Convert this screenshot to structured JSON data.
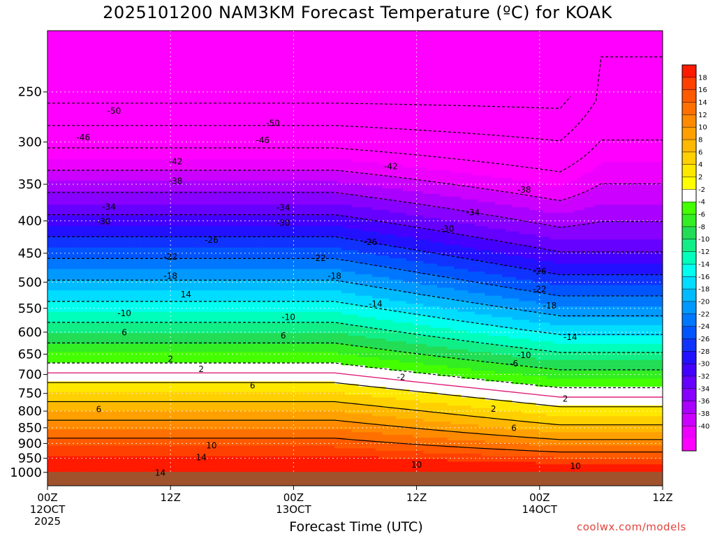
{
  "chart_data": {
    "type": "heatmap",
    "title": "2025101200 NAM3KM Forecast Temperature (ºC) for KOAK",
    "xlabel": "Forecast Time (UTC)",
    "ylabel": "",
    "x_ticks": [
      {
        "hours": 0,
        "lines": [
          "00Z",
          "12OCT",
          "2025"
        ]
      },
      {
        "hours": 12,
        "lines": [
          "12Z"
        ]
      },
      {
        "hours": 24,
        "lines": [
          "00Z",
          "13OCT"
        ]
      },
      {
        "hours": 36,
        "lines": [
          "12Z"
        ]
      },
      {
        "hours": 48,
        "lines": [
          "00Z",
          "14OCT"
        ]
      },
      {
        "hours": 60,
        "lines": [
          "12Z"
        ]
      }
    ],
    "xlim_hours": [
      0,
      60
    ],
    "y_ticks": [
      "250",
      "300",
      "350",
      "400",
      "450",
      "500",
      "550",
      "600",
      "650",
      "700",
      "750",
      "800",
      "850",
      "900",
      "950",
      "1000"
    ],
    "ylim": [
      1050,
      200
    ],
    "y_scale": "log",
    "grid": true,
    "colorbar": {
      "placement": "right",
      "labels": [
        "18",
        "16",
        "14",
        "12",
        "10",
        "8",
        "6",
        "4",
        "2",
        "-2",
        "-4",
        "-6",
        "-8",
        "-10",
        "-12",
        "-14",
        "-16",
        "-18",
        "-20",
        "-22",
        "-24",
        "-26",
        "-28",
        "-30",
        "-32",
        "-34",
        "-36",
        "-38",
        "-40"
      ],
      "colors": [
        "#ff1a00",
        "#ff4000",
        "#ff5a00",
        "#ff7000",
        "#ff8a00",
        "#ffa000",
        "#ffb800",
        "#ffd000",
        "#ffe800",
        "#ffff00",
        "#ffffff",
        "#44ff00",
        "#33ee22",
        "#22dd55",
        "#11ee88",
        "#00ffbb",
        "#00ffee",
        "#00ddff",
        "#00bbff",
        "#0099ff",
        "#0077ff",
        "#0055ff",
        "#1133ff",
        "#2211ff",
        "#4400ff",
        "#6600ff",
        "#8800ff",
        "#aa00ff",
        "#cc00ff",
        "#ee00ff",
        "#ff00ff"
      ]
    },
    "contour_labels": [
      {
        "t": 6.5,
        "p": 268,
        "text": "-50"
      },
      {
        "t": 22,
        "p": 280,
        "text": "-50"
      },
      {
        "t": 3.5,
        "p": 295,
        "text": "-46"
      },
      {
        "t": 21,
        "p": 298,
        "text": "-46"
      },
      {
        "t": 12.5,
        "p": 322,
        "text": "-42"
      },
      {
        "t": 33.5,
        "p": 328,
        "text": "-42"
      },
      {
        "t": 12.5,
        "p": 346,
        "text": "-38"
      },
      {
        "t": 46.5,
        "p": 357,
        "text": "-38"
      },
      {
        "t": 6,
        "p": 380,
        "text": "-34"
      },
      {
        "t": 23,
        "p": 381,
        "text": "-34"
      },
      {
        "t": 41.5,
        "p": 388,
        "text": "-34"
      },
      {
        "t": 5.5,
        "p": 401,
        "text": "-30"
      },
      {
        "t": 23,
        "p": 403,
        "text": "-30"
      },
      {
        "t": 39,
        "p": 412,
        "text": "-30"
      },
      {
        "t": 16,
        "p": 429,
        "text": "-26"
      },
      {
        "t": 31.5,
        "p": 432,
        "text": "-26"
      },
      {
        "t": 48,
        "p": 481,
        "text": "-26"
      },
      {
        "t": 12,
        "p": 456,
        "text": "-22"
      },
      {
        "t": 26.5,
        "p": 458,
        "text": "-22"
      },
      {
        "t": 48,
        "p": 513,
        "text": "-22"
      },
      {
        "t": 12,
        "p": 489,
        "text": "-18"
      },
      {
        "t": 28,
        "p": 489,
        "text": "-18"
      },
      {
        "t": 49,
        "p": 545,
        "text": "-18"
      },
      {
        "t": 13.5,
        "p": 523,
        "text": "14"
      },
      {
        "t": 32,
        "p": 541,
        "text": "-14"
      },
      {
        "t": 51,
        "p": 611,
        "text": "-14"
      },
      {
        "t": 7.5,
        "p": 560,
        "text": "-10"
      },
      {
        "t": 23.5,
        "p": 568,
        "text": "-10"
      },
      {
        "t": 46.5,
        "p": 653,
        "text": "-10"
      },
      {
        "t": 7.5,
        "p": 601,
        "text": "6"
      },
      {
        "t": 23,
        "p": 608,
        "text": "6"
      },
      {
        "t": 45.5,
        "p": 673,
        "text": "-6"
      },
      {
        "t": 12,
        "p": 662,
        "text": "2"
      },
      {
        "t": 15,
        "p": 687,
        "text": "2"
      },
      {
        "t": 34.5,
        "p": 707,
        "text": "-2"
      },
      {
        "t": 50.5,
        "p": 765,
        "text": "2"
      },
      {
        "t": 43.5,
        "p": 794,
        "text": "2"
      },
      {
        "t": 20,
        "p": 729,
        "text": "6"
      },
      {
        "t": 5,
        "p": 795,
        "text": "6"
      },
      {
        "t": 45.5,
        "p": 851,
        "text": "6"
      },
      {
        "t": 16,
        "p": 907,
        "text": "10"
      },
      {
        "t": 36,
        "p": 973,
        "text": "10"
      },
      {
        "t": 51.5,
        "p": 978,
        "text": "10"
      },
      {
        "t": 15,
        "p": 947,
        "text": "14"
      },
      {
        "t": 11,
        "p": 1002,
        "text": "14"
      }
    ]
  },
  "watermark": "coolwx.com/models"
}
